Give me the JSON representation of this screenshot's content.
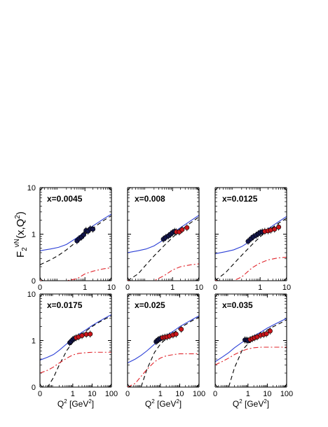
{
  "figure": {
    "ylabel_main": "F",
    "ylabel_sub": "2",
    "ylabel_sup": "νN",
    "ylabel_args": "(x,Q",
    "ylabel_args_sup": "2",
    "ylabel_close": ")",
    "xlabel_main": "Q",
    "xlabel_sup": "2",
    "xlabel_units": " [GeV",
    "xlabel_units_sup": "2",
    "xlabel_close": "]"
  },
  "colors": {
    "solid_curve": "#2b3fd6",
    "dashed_curve": "#000000",
    "dashdot_curve": "#e0242b",
    "dark_points": "#13154a",
    "red_points": "#c8151b"
  },
  "chart_data": [
    {
      "type": "line",
      "title": "x=0.0045",
      "xlim": [
        0,
        10
      ],
      "ylim": [
        0,
        10
      ],
      "xticks": [
        "0",
        "1",
        "10"
      ],
      "yticks": [
        "0",
        "1",
        "10"
      ],
      "series": [
        {
          "style": "solid",
          "x": [
            0.01,
            0.05,
            0.1,
            0.2,
            0.5,
            1,
            2,
            5,
            10
          ],
          "y": [
            0.44,
            0.48,
            0.52,
            0.6,
            0.84,
            1.13,
            1.5,
            2.12,
            2.7
          ]
        },
        {
          "style": "dashed",
          "x": [
            0.01,
            0.05,
            0.1,
            0.2,
            0.5,
            1,
            2,
            5,
            10
          ],
          "y": [
            0.22,
            0.28,
            0.35,
            0.46,
            0.7,
            0.98,
            1.35,
            1.95,
            2.5
          ]
        },
        {
          "style": "dashdot",
          "x": [
            0.01,
            0.05,
            0.1,
            0.2,
            0.5,
            1,
            2,
            5,
            10
          ],
          "y": [
            0.003,
            0.02,
            0.04,
            0.07,
            0.11,
            0.14,
            0.16,
            0.18,
            0.19
          ]
        },
        {
          "style": "points-dark",
          "x": [
            0.5,
            0.6,
            0.75,
            0.9,
            1.1,
            1.3,
            1.6,
            2
          ],
          "y": [
            0.72,
            0.8,
            0.87,
            0.97,
            1.2,
            1.16,
            1.3,
            1.28
          ]
        }
      ]
    },
    {
      "type": "line",
      "title": "x=0.008",
      "xlim": [
        0,
        10
      ],
      "ylim": [
        0,
        10
      ],
      "xticks": [
        "0",
        "1",
        "10"
      ],
      "yticks": [
        "0",
        "1",
        "10"
      ],
      "series": [
        {
          "style": "solid",
          "x": [
            0.01,
            0.05,
            0.1,
            0.2,
            0.5,
            1,
            2,
            5,
            10
          ],
          "y": [
            0.4,
            0.44,
            0.48,
            0.56,
            0.78,
            1.05,
            1.38,
            1.96,
            2.55
          ]
        },
        {
          "style": "dashed",
          "x": [
            0.01,
            0.05,
            0.1,
            0.2,
            0.5,
            1,
            2,
            5,
            10
          ],
          "y": [
            0.08,
            0.14,
            0.22,
            0.34,
            0.58,
            0.85,
            1.2,
            1.78,
            2.35
          ]
        },
        {
          "style": "dashdot",
          "x": [
            0.01,
            0.05,
            0.1,
            0.2,
            0.5,
            1,
            2,
            5,
            10
          ],
          "y": [
            0.003,
            0.02,
            0.04,
            0.08,
            0.13,
            0.17,
            0.2,
            0.22,
            0.23
          ]
        },
        {
          "style": "points-dark",
          "x": [
            0.45,
            0.55,
            0.7,
            0.85,
            1.0,
            1.2
          ],
          "y": [
            0.78,
            0.85,
            0.92,
            1.0,
            1.08,
            1.15
          ]
        },
        {
          "style": "points-red",
          "x": [
            1.4,
            1.8,
            2.3,
            3.5
          ],
          "y": [
            1.12,
            1.12,
            1.25,
            1.38
          ]
        }
      ]
    },
    {
      "type": "line",
      "title": "x=0.0125",
      "xlim": [
        0,
        10
      ],
      "ylim": [
        0,
        10
      ],
      "xticks": [
        "0",
        "1",
        "10"
      ],
      "yticks": [
        "0",
        "1",
        "10"
      ],
      "series": [
        {
          "style": "solid",
          "x": [
            0.01,
            0.05,
            0.1,
            0.2,
            0.5,
            1,
            2,
            5,
            10
          ],
          "y": [
            0.38,
            0.42,
            0.46,
            0.54,
            0.75,
            1.0,
            1.3,
            1.85,
            2.4
          ]
        },
        {
          "style": "dashed",
          "x": [
            0.01,
            0.05,
            0.1,
            0.2,
            0.5,
            1,
            2,
            5,
            10
          ],
          "y": [
            0.1,
            0.15,
            0.23,
            0.35,
            0.6,
            0.88,
            1.2,
            1.72,
            2.2
          ]
        },
        {
          "style": "dashdot",
          "x": [
            0.01,
            0.05,
            0.1,
            0.2,
            0.5,
            1,
            2,
            5,
            10
          ],
          "y": [
            0.01,
            0.04,
            0.07,
            0.12,
            0.19,
            0.24,
            0.28,
            0.31,
            0.32
          ]
        },
        {
          "style": "points-dark",
          "x": [
            0.35,
            0.45,
            0.55,
            0.7,
            0.85,
            1.0,
            1.2
          ],
          "y": [
            0.7,
            0.8,
            0.88,
            0.95,
            1.02,
            1.08,
            1.12
          ]
        },
        {
          "style": "points-red",
          "x": [
            1.5,
            2,
            2.5,
            3.5,
            5
          ],
          "y": [
            1.15,
            1.18,
            1.22,
            1.28,
            1.42
          ]
        }
      ]
    },
    {
      "type": "line",
      "title": "x=0.0175",
      "xlim": [
        0,
        100
      ],
      "ylim": [
        0,
        10
      ],
      "xticks": [
        "0",
        "1",
        "10",
        "100"
      ],
      "yticks": [
        "0",
        "1",
        "10"
      ],
      "series": [
        {
          "style": "solid",
          "x": [
            0.01,
            0.05,
            0.1,
            0.2,
            0.5,
            1,
            2,
            5,
            10,
            20,
            50,
            100
          ],
          "y": [
            0.38,
            0.44,
            0.5,
            0.62,
            0.86,
            1.1,
            1.35,
            1.72,
            2.1,
            2.5,
            3.1,
            3.6
          ]
        },
        {
          "style": "dashed",
          "x": [
            0.01,
            0.05,
            0.1,
            0.2,
            0.5,
            1,
            2,
            5,
            10,
            20,
            50,
            100
          ],
          "y": [
            0.06,
            0.1,
            0.16,
            0.3,
            0.62,
            0.92,
            1.22,
            1.62,
            2.0,
            2.4,
            2.95,
            3.4
          ]
        },
        {
          "style": "dashdot",
          "x": [
            0.01,
            0.05,
            0.1,
            0.2,
            0.5,
            1,
            2,
            5,
            10,
            20,
            50,
            100
          ],
          "y": [
            0.2,
            0.23,
            0.27,
            0.33,
            0.42,
            0.49,
            0.53,
            0.55,
            0.56,
            0.56,
            0.56,
            0.56
          ]
        },
        {
          "style": "points-dark",
          "x": [
            0.7,
            0.8,
            1.0,
            1.2
          ],
          "y": [
            0.9,
            0.95,
            1.05,
            1.1
          ]
        },
        {
          "style": "points-red",
          "x": [
            1.5,
            2,
            3,
            5,
            8
          ],
          "y": [
            1.15,
            1.2,
            1.28,
            1.36,
            1.38
          ]
        }
      ]
    },
    {
      "type": "line",
      "title": "x=0.025",
      "xlim": [
        0,
        100
      ],
      "ylim": [
        0,
        10
      ],
      "xticks": [
        "0",
        "1",
        "10",
        "100"
      ],
      "yticks": [
        "0",
        "1",
        "10"
      ],
      "series": [
        {
          "style": "solid",
          "x": [
            0.01,
            0.05,
            0.1,
            0.2,
            0.5,
            1,
            2,
            5,
            10,
            20,
            50,
            100
          ],
          "y": [
            0.33,
            0.4,
            0.48,
            0.6,
            0.84,
            1.05,
            1.28,
            1.62,
            1.98,
            2.35,
            2.9,
            3.4
          ]
        },
        {
          "style": "dashed",
          "x": [
            0.01,
            0.05,
            0.1,
            0.2,
            0.5,
            1,
            2,
            5,
            10,
            20,
            50,
            100
          ],
          "y": [
            0.002,
            0.04,
            0.1,
            0.24,
            0.56,
            0.84,
            1.1,
            1.48,
            1.85,
            2.2,
            2.75,
            3.2
          ]
        },
        {
          "style": "dashdot",
          "x": [
            0.01,
            0.05,
            0.1,
            0.2,
            0.5,
            1,
            2,
            5,
            10,
            20,
            50,
            100
          ],
          "y": [
            0.08,
            0.12,
            0.17,
            0.24,
            0.35,
            0.42,
            0.47,
            0.5,
            0.52,
            0.52,
            0.52,
            0.52
          ]
        },
        {
          "style": "points-dark",
          "x": [
            0.6,
            0.7,
            0.8,
            1.0
          ],
          "y": [
            0.95,
            1.0,
            1.05,
            1.1
          ]
        },
        {
          "style": "points-red",
          "x": [
            1.3,
            1.7,
            2.2,
            3,
            4.5,
            6.5,
            12
          ],
          "y": [
            1.15,
            1.18,
            1.2,
            1.25,
            1.32,
            1.38,
            1.75
          ]
        }
      ]
    },
    {
      "type": "line",
      "title": "x=0.035",
      "xlim": [
        0,
        100
      ],
      "ylim": [
        0,
        10
      ],
      "xticks": [
        "0",
        "1",
        "10",
        "100"
      ],
      "yticks": [
        "0",
        "1",
        "10"
      ],
      "series": [
        {
          "style": "solid",
          "x": [
            0.01,
            0.05,
            0.1,
            0.2,
            0.5,
            1,
            2,
            5,
            10,
            20,
            50,
            100
          ],
          "y": [
            0.35,
            0.45,
            0.55,
            0.7,
            0.92,
            1.08,
            1.25,
            1.55,
            1.85,
            2.15,
            2.6,
            3.0
          ]
        },
        {
          "style": "dashed",
          "x": [
            0.01,
            0.05,
            0.1,
            0.2,
            0.5,
            1,
            2,
            5,
            10,
            20,
            50,
            100
          ],
          "y": [
            0.002,
            0.03,
            0.09,
            0.26,
            0.62,
            0.85,
            1.05,
            1.38,
            1.68,
            1.98,
            2.4,
            2.8
          ]
        },
        {
          "style": "dashdot",
          "x": [
            0.01,
            0.05,
            0.1,
            0.2,
            0.5,
            1,
            2,
            5,
            10,
            20,
            50,
            100
          ],
          "y": [
            0.3,
            0.36,
            0.42,
            0.5,
            0.6,
            0.66,
            0.7,
            0.72,
            0.72,
            0.72,
            0.72,
            0.72
          ]
        },
        {
          "style": "points-dark",
          "x": [
            0.7,
            0.85,
            1.0
          ],
          "y": [
            1.03,
            1.02,
            1.0
          ]
        },
        {
          "style": "points-red",
          "x": [
            1.3,
            1.7,
            2.2,
            3,
            4.5,
            6.5,
            9,
            14
          ],
          "y": [
            1.05,
            1.1,
            1.15,
            1.2,
            1.3,
            1.35,
            1.4,
            1.6
          ]
        }
      ]
    }
  ]
}
